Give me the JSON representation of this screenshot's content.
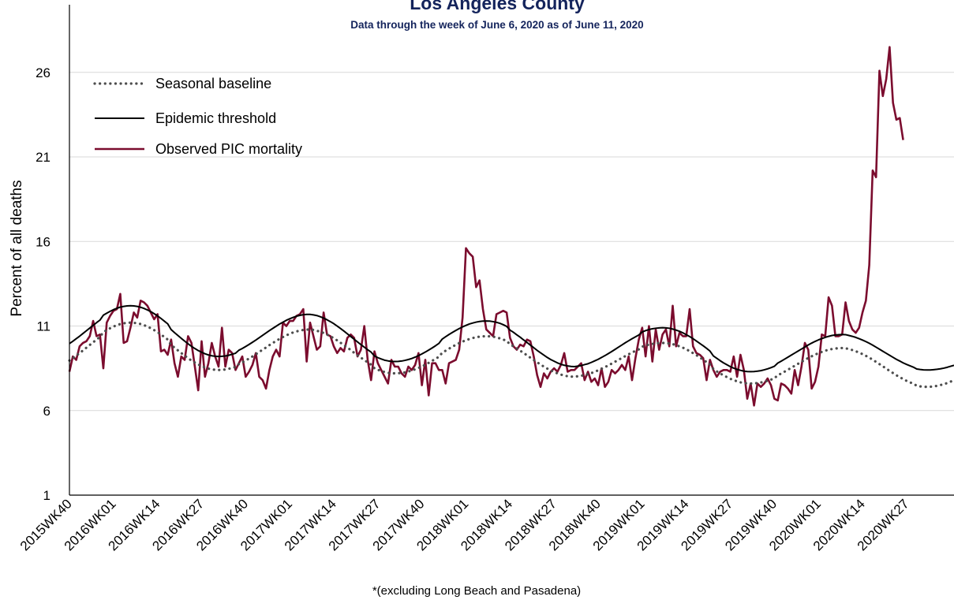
{
  "chart_data": {
    "type": "line",
    "title": "Los Angeles County",
    "subtitle": "Data through the week of June 6, 2020 as of June 11, 2020",
    "y_label": "Percent of all deaths",
    "footnote": "*(excluding Long Beach and Pasadena)",
    "ylim": [
      1,
      30
    ],
    "yticks": [
      1,
      6,
      11,
      16,
      21,
      26
    ],
    "grid": true,
    "legend": "upper left",
    "categories": [
      "2015WK40",
      null,
      null,
      null,
      null,
      null,
      null,
      null,
      null,
      null,
      null,
      null,
      null,
      "2016WK01",
      null,
      null,
      null,
      null,
      null,
      null,
      null,
      null,
      null,
      null,
      null,
      null,
      "2016WK14",
      null,
      null,
      null,
      null,
      null,
      null,
      null,
      null,
      null,
      null,
      null,
      null,
      "2016WK27",
      null,
      null,
      null,
      null,
      null,
      null,
      null,
      null,
      null,
      null,
      null,
      null,
      "2016WK40",
      null,
      null,
      null,
      null,
      null,
      null,
      null,
      null,
      null,
      null,
      null,
      null,
      "2017WK01",
      null,
      null,
      null,
      null,
      null,
      null,
      null,
      null,
      null,
      null,
      null,
      null,
      "2017WK14",
      null,
      null,
      null,
      null,
      null,
      null,
      null,
      null,
      null,
      null,
      null,
      null,
      "2017WK27",
      null,
      null,
      null,
      null,
      null,
      null,
      null,
      null,
      null,
      null,
      null,
      null,
      "2017WK40",
      null,
      null,
      null,
      null,
      null,
      null,
      null,
      null,
      null,
      null,
      null,
      null,
      "2018WK01",
      null,
      null,
      null,
      null,
      null,
      null,
      null,
      null,
      null,
      null,
      null,
      null,
      "2018WK14",
      null,
      null,
      null,
      null,
      null,
      null,
      null,
      null,
      null,
      null,
      null,
      null,
      "2018WK27",
      null,
      null,
      null,
      null,
      null,
      null,
      null,
      null,
      null,
      null,
      null,
      null,
      "2018WK40",
      null,
      null,
      null,
      null,
      null,
      null,
      null,
      null,
      null,
      null,
      null,
      null,
      "2019WK01",
      null,
      null,
      null,
      null,
      null,
      null,
      null,
      null,
      null,
      null,
      null,
      null,
      "2019WK14",
      null,
      null,
      null,
      null,
      null,
      null,
      null,
      null,
      null,
      null,
      null,
      null,
      "2019WK27",
      null,
      null,
      null,
      null,
      null,
      null,
      null,
      null,
      null,
      null,
      null,
      null,
      "2019WK40",
      null,
      null,
      null,
      null,
      null,
      null,
      null,
      null,
      null,
      null,
      null,
      null,
      "2020WK01",
      null,
      null,
      null,
      null,
      null,
      null,
      null,
      null,
      null,
      null,
      null,
      null,
      "2020WK14",
      null,
      null,
      null,
      null,
      null,
      null,
      null,
      null,
      null,
      null,
      null,
      null,
      "2020WK27",
      null,
      null,
      null,
      null,
      null,
      null,
      null,
      null,
      null,
      null,
      null,
      null,
      null,
      null
    ],
    "series": [
      {
        "name": "Seasonal baseline",
        "color": "#4d4d4d",
        "line_style": "dotted",
        "values": [
          8.96,
          9.1,
          9.25,
          9.4,
          9.56,
          9.72,
          9.88,
          10.04,
          10.2,
          10.35,
          10.64,
          10.76,
          10.87,
          10.97,
          11.05,
          11.12,
          11.16,
          11.19,
          11.2,
          11.19,
          11.16,
          11.12,
          11.05,
          10.97,
          10.87,
          10.76,
          10.64,
          10.5,
          10.35,
          10.2,
          9.88,
          9.72,
          9.56,
          9.4,
          9.25,
          9.1,
          8.96,
          8.84,
          8.73,
          8.63,
          8.55,
          8.48,
          8.44,
          8.41,
          8.4,
          8.41,
          8.43,
          8.47,
          8.52,
          8.58,
          8.75,
          8.85,
          8.96,
          9.08,
          9.2,
          9.33,
          9.47,
          9.6,
          9.73,
          9.87,
          10.0,
          10.12,
          10.24,
          10.35,
          10.45,
          10.54,
          10.62,
          10.68,
          10.73,
          10.77,
          10.79,
          10.79,
          10.77,
          10.72,
          10.66,
          10.59,
          10.5,
          10.39,
          10.28,
          10.15,
          10.01,
          9.87,
          9.73,
          9.58,
          9.42,
          9.27,
          9.13,
          8.99,
          8.85,
          8.72,
          8.5,
          8.41,
          8.34,
          8.28,
          8.23,
          8.21,
          8.2,
          8.21,
          8.23,
          8.26,
          8.31,
          8.37,
          8.44,
          8.52,
          8.61,
          8.71,
          8.82,
          8.94,
          9.06,
          9.18,
          9.42,
          9.54,
          9.66,
          9.78,
          9.89,
          9.99,
          10.08,
          10.16,
          10.23,
          10.29,
          10.34,
          10.37,
          10.39,
          10.4,
          10.39,
          10.37,
          10.33,
          10.27,
          10.2,
          10.12,
          9.92,
          9.8,
          9.68,
          9.54,
          9.41,
          9.27,
          9.13,
          8.99,
          8.86,
          8.72,
          8.6,
          8.48,
          8.38,
          8.28,
          8.2,
          8.13,
          8.07,
          8.03,
          8.01,
          8.0,
          8.03,
          8.06,
          8.1,
          8.15,
          8.22,
          8.29,
          8.38,
          8.47,
          8.57,
          8.67,
          8.78,
          8.89,
          9.0,
          9.11,
          9.22,
          9.33,
          9.43,
          9.53,
          9.62,
          9.78,
          9.85,
          9.9,
          9.94,
          9.98,
          9.99,
          10.0,
          9.99,
          9.97,
          9.93,
          9.87,
          9.8,
          9.72,
          9.62,
          9.52,
          9.4,
          9.28,
          9.14,
          9.01,
          8.87,
          8.73,
          8.46,
          8.32,
          8.2,
          8.08,
          7.98,
          7.88,
          7.8,
          7.73,
          7.67,
          7.63,
          7.61,
          7.6,
          7.61,
          7.63,
          7.66,
          7.71,
          7.76,
          7.83,
          7.91,
          8.09,
          8.19,
          8.3,
          8.42,
          8.53,
          8.65,
          8.77,
          8.88,
          9.0,
          9.11,
          9.21,
          9.31,
          9.39,
          9.47,
          9.54,
          9.6,
          9.64,
          9.67,
          9.69,
          9.7,
          9.69,
          9.63,
          9.58,
          9.51,
          9.43,
          9.34,
          9.24,
          9.13,
          9.01,
          8.88,
          8.75,
          8.62,
          8.48,
          8.35,
          8.22,
          8.09,
          7.98,
          7.86,
          7.76,
          7.67,
          7.59,
          7.47,
          7.43,
          7.41,
          7.4,
          7.41,
          7.43,
          7.46,
          7.51,
          7.56,
          7.63,
          7.71,
          7.8
        ]
      },
      {
        "name": "Epidemic threshold",
        "color": "#000000",
        "line_style": "solid",
        "values": [
          9.96,
          10.1,
          10.25,
          10.4,
          10.56,
          10.72,
          10.88,
          11.04,
          11.2,
          11.35,
          11.64,
          11.76,
          11.87,
          11.97,
          12.05,
          12.12,
          12.16,
          12.19,
          12.2,
          12.19,
          12.16,
          12.11,
          12.04,
          11.95,
          11.85,
          11.73,
          11.6,
          11.45,
          11.29,
          11.13,
          10.79,
          10.61,
          10.44,
          10.27,
          10.11,
          9.95,
          9.8,
          9.67,
          9.55,
          9.45,
          9.36,
          9.29,
          9.24,
          9.21,
          9.2,
          9.21,
          9.23,
          9.27,
          9.33,
          9.39,
          9.57,
          9.67,
          9.79,
          9.91,
          10.04,
          10.17,
          10.31,
          10.45,
          10.59,
          10.73,
          10.86,
          10.99,
          11.12,
          11.23,
          11.34,
          11.43,
          11.51,
          11.58,
          11.63,
          11.67,
          11.69,
          11.69,
          11.66,
          11.62,
          11.55,
          11.47,
          11.37,
          11.26,
          11.14,
          11.0,
          10.85,
          10.7,
          10.54,
          10.38,
          10.22,
          10.06,
          9.9,
          9.75,
          9.6,
          9.46,
          9.23,
          9.13,
          9.05,
          8.98,
          8.94,
          8.91,
          8.9,
          8.91,
          8.93,
          8.97,
          9.02,
          9.08,
          9.16,
          9.25,
          9.35,
          9.46,
          9.58,
          9.7,
          9.83,
          9.97,
          10.23,
          10.37,
          10.5,
          10.62,
          10.74,
          10.85,
          10.95,
          11.04,
          11.12,
          11.18,
          11.23,
          11.27,
          11.29,
          11.3,
          11.29,
          11.26,
          11.22,
          11.16,
          11.08,
          10.98,
          10.76,
          10.63,
          10.48,
          10.34,
          10.18,
          10.03,
          9.87,
          9.72,
          9.56,
          9.42,
          9.28,
          9.14,
          9.02,
          8.92,
          8.82,
          8.74,
          8.68,
          8.64,
          8.61,
          8.6,
          8.63,
          8.66,
          8.72,
          8.77,
          8.85,
          8.94,
          9.03,
          9.14,
          9.25,
          9.37,
          9.49,
          9.62,
          9.75,
          9.88,
          10.01,
          10.13,
          10.25,
          10.36,
          10.47,
          10.65,
          10.73,
          10.79,
          10.84,
          10.87,
          10.89,
          10.9,
          10.89,
          10.87,
          10.82,
          10.76,
          10.69,
          10.6,
          10.49,
          10.38,
          10.25,
          10.11,
          9.97,
          9.83,
          9.68,
          9.52,
          9.23,
          9.09,
          8.95,
          8.82,
          8.71,
          8.6,
          8.51,
          8.44,
          8.38,
          8.33,
          8.31,
          8.3,
          8.31,
          8.33,
          8.36,
          8.41,
          8.47,
          8.54,
          8.62,
          8.81,
          8.92,
          9.04,
          9.16,
          9.28,
          9.4,
          9.52,
          9.64,
          9.76,
          9.88,
          9.99,
          10.09,
          10.18,
          10.26,
          10.33,
          10.39,
          10.44,
          10.47,
          10.49,
          10.5,
          10.49,
          10.44,
          10.39,
          10.33,
          10.25,
          10.17,
          10.08,
          9.98,
          9.87,
          9.75,
          9.63,
          9.51,
          9.39,
          9.27,
          9.15,
          9.03,
          8.93,
          8.82,
          8.73,
          8.65,
          8.57,
          8.46,
          8.43,
          8.41,
          8.4,
          8.4,
          8.42,
          8.44,
          8.47,
          8.51,
          8.56,
          8.62,
          8.68
        ]
      },
      {
        "name": "Observed PIC mortality",
        "color": "#7b0c2e",
        "line_style": "solid",
        "values": [
          8.3,
          9.2,
          9.0,
          9.8,
          10.0,
          10.1,
          10.4,
          11.3,
          10.4,
          10.5,
          8.5,
          11.2,
          11.6,
          11.9,
          12.0,
          12.9,
          10.0,
          10.1,
          10.9,
          11.8,
          11.5,
          12.5,
          12.4,
          12.2,
          11.8,
          11.4,
          11.7,
          9.5,
          9.6,
          9.3,
          10.2,
          8.8,
          8.0,
          9.2,
          9.0,
          10.4,
          10.0,
          8.6,
          7.2,
          10.1,
          8.0,
          8.8,
          10.0,
          9.2,
          8.6,
          10.9,
          8.6,
          9.6,
          9.4,
          8.4,
          8.8,
          9.2,
          8.0,
          8.3,
          8.7,
          9.4,
          8.0,
          7.8,
          7.3,
          8.4,
          9.2,
          9.6,
          9.2,
          11.2,
          11.0,
          11.3,
          11.3,
          11.6,
          11.7,
          12.0,
          8.9,
          11.2,
          10.4,
          9.6,
          9.8,
          11.8,
          10.5,
          10.4,
          9.8,
          9.4,
          9.7,
          9.5,
          10.3,
          10.5,
          10.3,
          9.2,
          9.6,
          11.0,
          9.0,
          7.8,
          9.5,
          8.8,
          8.4,
          8.0,
          7.6,
          9.0,
          8.6,
          8.6,
          8.2,
          8.0,
          8.6,
          8.4,
          8.7,
          9.4,
          7.5,
          9.0,
          6.9,
          8.8,
          8.8,
          8.4,
          8.4,
          7.6,
          8.8,
          8.9,
          9.0,
          9.6,
          11.5,
          15.6,
          15.3,
          15.1,
          13.3,
          13.7,
          12.0,
          10.8,
          10.6,
          10.4,
          11.7,
          11.8,
          11.9,
          11.8,
          10.3,
          9.8,
          9.6,
          9.9,
          9.8,
          10.2,
          10.1,
          9.2,
          8.1,
          7.4,
          8.2,
          7.9,
          8.3,
          8.5,
          8.3,
          8.7,
          9.4,
          8.3,
          8.4,
          8.4,
          8.6,
          8.8,
          7.8,
          8.3,
          7.7,
          7.9,
          7.5,
          8.5,
          7.4,
          7.7,
          8.4,
          8.2,
          8.4,
          8.7,
          8.4,
          9.2,
          7.8,
          9.1,
          10.2,
          10.9,
          9.2,
          11.0,
          8.9,
          10.8,
          9.6,
          10.5,
          10.8,
          9.8,
          12.2,
          9.8,
          10.6,
          10.4,
          10.4,
          12.0,
          9.8,
          9.4,
          9.3,
          9.1,
          7.8,
          9.0,
          8.4,
          8.0,
          8.3,
          8.4,
          8.4,
          8.3,
          9.2,
          8.0,
          9.3,
          8.4,
          6.7,
          7.6,
          6.3,
          7.6,
          7.4,
          7.6,
          7.9,
          7.5,
          6.7,
          6.6,
          7.6,
          7.5,
          7.3,
          7.0,
          8.4,
          7.5,
          8.6,
          10.0,
          9.6,
          7.3,
          7.7,
          8.6,
          10.5,
          10.4,
          12.7,
          12.2,
          10.4,
          10.4,
          10.5,
          12.4,
          11.3,
          10.8,
          10.6,
          10.9,
          11.8,
          12.5,
          14.6,
          20.2,
          19.8,
          26.1,
          24.6,
          25.6,
          27.5,
          24.2,
          23.2,
          23.3,
          22.0,
          null,
          null,
          null,
          null,
          null,
          null,
          null,
          null,
          null,
          null,
          null,
          null,
          null,
          null,
          null
        ]
      }
    ]
  }
}
